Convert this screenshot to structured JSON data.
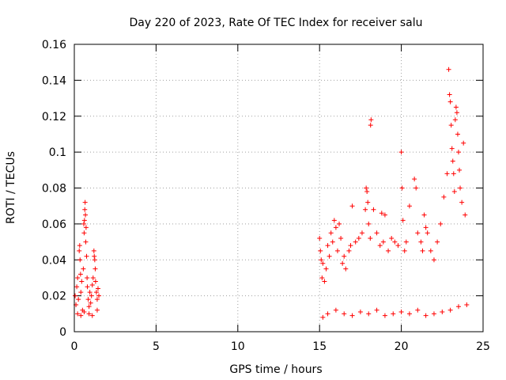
{
  "chart_data": {
    "type": "scatter",
    "title": "Day 220 of 2023, Rate Of TEC Index for receiver salu",
    "xlabel": "GPS time / hours",
    "ylabel": "ROTI / TECUs",
    "xlim": [
      0,
      25
    ],
    "ylim": [
      0,
      0.16
    ],
    "xticks": [
      0,
      5,
      10,
      15,
      20,
      25
    ],
    "yticks": [
      0,
      0.02,
      0.04,
      0.06,
      0.08,
      0.1,
      0.12,
      0.14,
      0.16
    ],
    "xtick_labels": [
      "0",
      "5",
      "10",
      "15",
      "20",
      "25"
    ],
    "ytick_labels": [
      "0",
      "0.02",
      "0.04",
      "0.06",
      "0.08",
      "0.1",
      "0.12",
      "0.14",
      "0.16"
    ],
    "grid": true,
    "marker": "+",
    "color": "#ff0000",
    "series": [
      {
        "points": [
          [
            0.05,
            0.02
          ],
          [
            0.1,
            0.015
          ],
          [
            0.15,
            0.025
          ],
          [
            0.2,
            0.03
          ],
          [
            0.25,
            0.018
          ],
          [
            0.3,
            0.045
          ],
          [
            0.33,
            0.048
          ],
          [
            0.35,
            0.04
          ],
          [
            0.38,
            0.032
          ],
          [
            0.4,
            0.022
          ],
          [
            0.45,
            0.028
          ],
          [
            0.5,
            0.012
          ],
          [
            0.55,
            0.035
          ],
          [
            0.58,
            0.06
          ],
          [
            0.6,
            0.055
          ],
          [
            0.62,
            0.062
          ],
          [
            0.64,
            0.068
          ],
          [
            0.66,
            0.072
          ],
          [
            0.68,
            0.065
          ],
          [
            0.7,
            0.05
          ],
          [
            0.72,
            0.058
          ],
          [
            0.75,
            0.042
          ],
          [
            0.78,
            0.03
          ],
          [
            0.8,
            0.025
          ],
          [
            0.85,
            0.018
          ],
          [
            0.9,
            0.014
          ],
          [
            0.95,
            0.022
          ],
          [
            1.0,
            0.016
          ],
          [
            1.05,
            0.02
          ],
          [
            1.1,
            0.026
          ],
          [
            1.15,
            0.03
          ],
          [
            1.2,
            0.045
          ],
          [
            1.22,
            0.042
          ],
          [
            1.25,
            0.04
          ],
          [
            1.28,
            0.035
          ],
          [
            1.3,
            0.028
          ],
          [
            1.35,
            0.022
          ],
          [
            1.4,
            0.018
          ],
          [
            1.45,
            0.024
          ],
          [
            1.5,
            0.02
          ],
          [
            0.2,
            0.01
          ],
          [
            0.4,
            0.009
          ],
          [
            0.6,
            0.011
          ],
          [
            0.9,
            0.01
          ],
          [
            1.1,
            0.009
          ],
          [
            1.4,
            0.012
          ],
          [
            15.0,
            0.052
          ],
          [
            15.05,
            0.045
          ],
          [
            15.1,
            0.04
          ],
          [
            15.15,
            0.03
          ],
          [
            15.2,
            0.038
          ],
          [
            15.3,
            0.028
          ],
          [
            15.4,
            0.035
          ],
          [
            15.5,
            0.048
          ],
          [
            15.6,
            0.042
          ],
          [
            15.7,
            0.055
          ],
          [
            15.8,
            0.05
          ],
          [
            15.9,
            0.062
          ],
          [
            16.0,
            0.058
          ],
          [
            16.1,
            0.045
          ],
          [
            16.2,
            0.06
          ],
          [
            16.3,
            0.052
          ],
          [
            16.4,
            0.038
          ],
          [
            16.5,
            0.042
          ],
          [
            16.6,
            0.035
          ],
          [
            16.8,
            0.045
          ],
          [
            16.9,
            0.048
          ],
          [
            17.0,
            0.07
          ],
          [
            17.2,
            0.05
          ],
          [
            17.4,
            0.052
          ],
          [
            17.6,
            0.055
          ],
          [
            17.8,
            0.068
          ],
          [
            17.85,
            0.08
          ],
          [
            17.9,
            0.078
          ],
          [
            17.95,
            0.072
          ],
          [
            18.0,
            0.06
          ],
          [
            18.1,
            0.052
          ],
          [
            18.12,
            0.115
          ],
          [
            18.15,
            0.118
          ],
          [
            18.3,
            0.068
          ],
          [
            18.5,
            0.055
          ],
          [
            18.7,
            0.048
          ],
          [
            18.9,
            0.05
          ],
          [
            19.0,
            0.065
          ],
          [
            19.2,
            0.045
          ],
          [
            19.4,
            0.052
          ],
          [
            19.6,
            0.05
          ],
          [
            19.8,
            0.048
          ],
          [
            20.0,
            0.1
          ],
          [
            20.05,
            0.08
          ],
          [
            20.1,
            0.062
          ],
          [
            20.2,
            0.045
          ],
          [
            20.3,
            0.05
          ],
          [
            20.5,
            0.07
          ],
          [
            20.8,
            0.085
          ],
          [
            20.9,
            0.08
          ],
          [
            21.0,
            0.055
          ],
          [
            21.2,
            0.05
          ],
          [
            21.3,
            0.045
          ],
          [
            21.4,
            0.065
          ],
          [
            21.5,
            0.058
          ],
          [
            21.6,
            0.055
          ],
          [
            21.8,
            0.045
          ],
          [
            22.0,
            0.04
          ],
          [
            22.2,
            0.05
          ],
          [
            22.4,
            0.06
          ],
          [
            22.6,
            0.075
          ],
          [
            22.8,
            0.088
          ],
          [
            22.9,
            0.146
          ],
          [
            22.95,
            0.132
          ],
          [
            23.0,
            0.128
          ],
          [
            23.05,
            0.115
          ],
          [
            23.1,
            0.102
          ],
          [
            23.15,
            0.095
          ],
          [
            23.2,
            0.088
          ],
          [
            23.25,
            0.078
          ],
          [
            23.3,
            0.118
          ],
          [
            23.35,
            0.125
          ],
          [
            23.4,
            0.122
          ],
          [
            23.45,
            0.11
          ],
          [
            23.5,
            0.1
          ],
          [
            23.55,
            0.09
          ],
          [
            23.6,
            0.08
          ],
          [
            23.7,
            0.072
          ],
          [
            23.8,
            0.105
          ],
          [
            23.9,
            0.065
          ],
          [
            15.2,
            0.008
          ],
          [
            15.5,
            0.01
          ],
          [
            16.0,
            0.012
          ],
          [
            16.5,
            0.01
          ],
          [
            17.0,
            0.009
          ],
          [
            17.5,
            0.011
          ],
          [
            18.0,
            0.01
          ],
          [
            18.5,
            0.012
          ],
          [
            19.0,
            0.009
          ],
          [
            19.5,
            0.01
          ],
          [
            20.0,
            0.011
          ],
          [
            20.5,
            0.01
          ],
          [
            21.0,
            0.012
          ],
          [
            21.5,
            0.009
          ],
          [
            22.0,
            0.01
          ],
          [
            22.5,
            0.011
          ],
          [
            23.0,
            0.012
          ],
          [
            23.5,
            0.014
          ],
          [
            24.0,
            0.015
          ],
          [
            18.8,
            0.066
          ]
        ]
      }
    ]
  }
}
